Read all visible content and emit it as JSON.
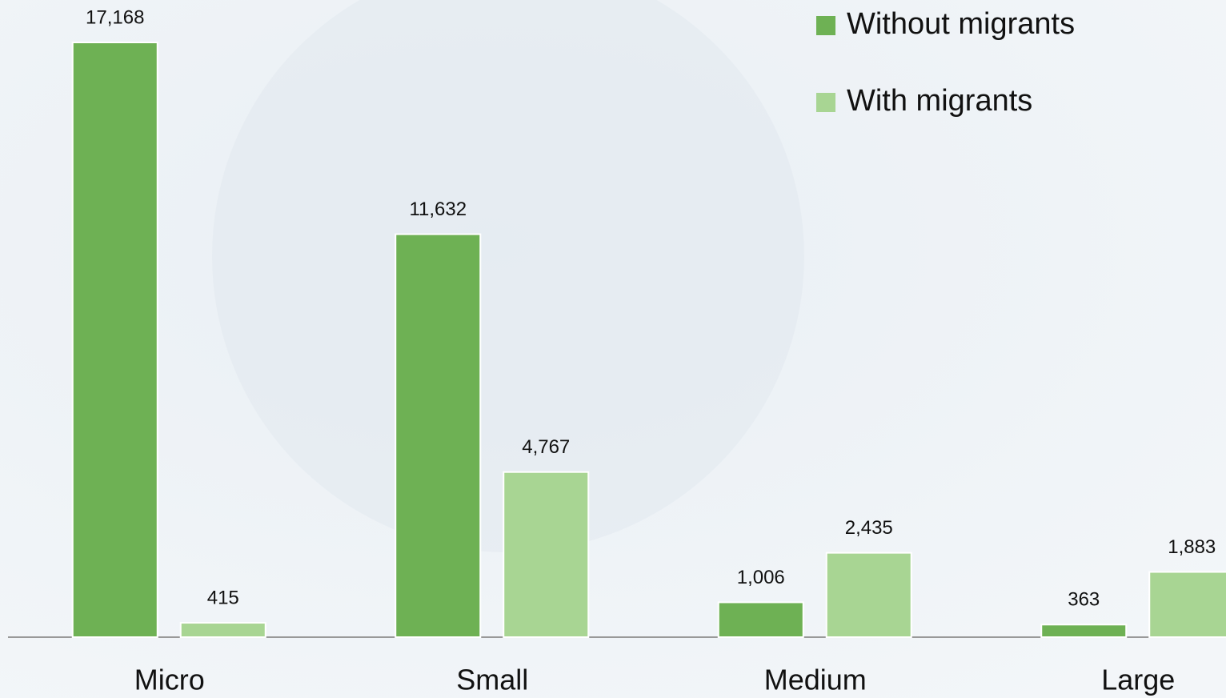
{
  "chart_data": {
    "type": "bar",
    "categories": [
      "Micro",
      "Small",
      "Medium",
      "Large"
    ],
    "series": [
      {
        "name": "Without migrants",
        "color": "#6eb154",
        "values": [
          17168,
          11632,
          1006,
          363
        ],
        "value_labels": [
          "17,168",
          "11,632",
          "1,006",
          "363"
        ]
      },
      {
        "name": "With migrants",
        "color": "#a8d593",
        "values": [
          415,
          4767,
          2435,
          1883
        ],
        "value_labels": [
          "415",
          "4,767",
          "2,435",
          "1,883"
        ]
      }
    ],
    "legend": "top-right"
  }
}
